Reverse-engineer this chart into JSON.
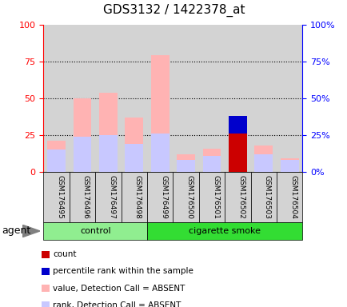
{
  "title": "GDS3132 / 1422378_at",
  "samples": [
    "GSM176495",
    "GSM176496",
    "GSM176497",
    "GSM176498",
    "GSM176499",
    "GSM176500",
    "GSM176501",
    "GSM176502",
    "GSM176503",
    "GSM176504"
  ],
  "groups": [
    "control",
    "control",
    "control",
    "control",
    "cigarette smoke",
    "cigarette smoke",
    "cigarette smoke",
    "cigarette smoke",
    "cigarette smoke",
    "cigarette smoke"
  ],
  "value_absent": [
    21,
    50,
    54,
    37,
    79,
    12,
    16,
    0,
    18,
    9
  ],
  "rank_absent": [
    15,
    24,
    25,
    19,
    26,
    8,
    11,
    0,
    12,
    8
  ],
  "count": [
    0,
    0,
    0,
    0,
    0,
    0,
    0,
    26,
    0,
    0
  ],
  "percentile_rank": [
    0,
    0,
    0,
    0,
    0,
    0,
    0,
    12,
    0,
    0
  ],
  "color_value_absent": "#ffb3b3",
  "color_rank_absent": "#c8c8ff",
  "color_count": "#cc0000",
  "color_percentile": "#0000cc",
  "ylim": [
    0,
    100
  ],
  "yticks_left": [
    0,
    25,
    50,
    75,
    100
  ],
  "yticks_right": [
    0,
    25,
    50,
    75,
    100
  ],
  "agent_label": "agent",
  "group_control": "control",
  "group_smoke": "cigarette smoke",
  "group_control_color": "#90ee90",
  "group_smoke_color": "#33dd33",
  "xtick_bg_color": "#d3d3d3",
  "legend_items": [
    {
      "label": "count",
      "color": "#cc0000"
    },
    {
      "label": "percentile rank within the sample",
      "color": "#0000cc"
    },
    {
      "label": "value, Detection Call = ABSENT",
      "color": "#ffb3b3"
    },
    {
      "label": "rank, Detection Call = ABSENT",
      "color": "#c8c8ff"
    }
  ]
}
